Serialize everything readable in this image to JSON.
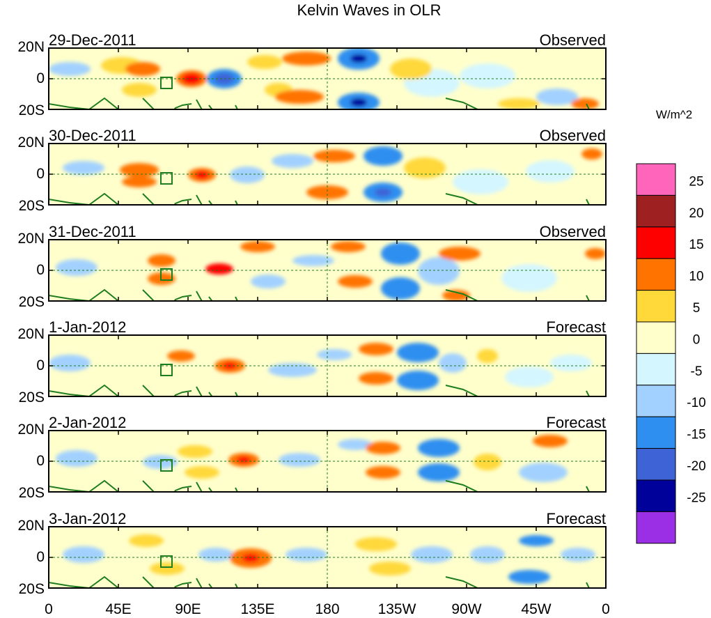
{
  "title": "Kelvin Waves in OLR",
  "units": "W/m^2",
  "y_ticks": [
    "20N",
    "0",
    "20S"
  ],
  "x_ticks": [
    "0",
    "45E",
    "90E",
    "135E",
    "180",
    "135W",
    "90W",
    "45W",
    "0"
  ],
  "colorbar": {
    "labels": [
      "25",
      "20",
      "15",
      "10",
      "5",
      "0",
      "-5",
      "-10",
      "-15",
      "-20",
      "-25"
    ],
    "colors": [
      "#ff66bb",
      "#9e2020",
      "#ff0000",
      "#ff7300",
      "#ffd83a",
      "#ffffcc",
      "#d4f6ff",
      "#a3d1ff",
      "#2e8ff0",
      "#3e63d6",
      "#00009b",
      "#9b2fe6"
    ]
  },
  "panels": [
    {
      "date": "29-Dec-2011",
      "type": "Observed"
    },
    {
      "date": "30-Dec-2011",
      "type": "Observed"
    },
    {
      "date": "31-Dec-2011",
      "type": "Observed"
    },
    {
      "date": "1-Jan-2012",
      "type": "Forecast"
    },
    {
      "date": "2-Jan-2012",
      "type": "Forecast"
    },
    {
      "date": "3-Jan-2012",
      "type": "Forecast"
    }
  ],
  "map_colors": {
    "background": "#ffffcc",
    "coastline": "#1e7d1e",
    "reference_lines": "#1e7d1e",
    "frame": "#000000"
  }
}
